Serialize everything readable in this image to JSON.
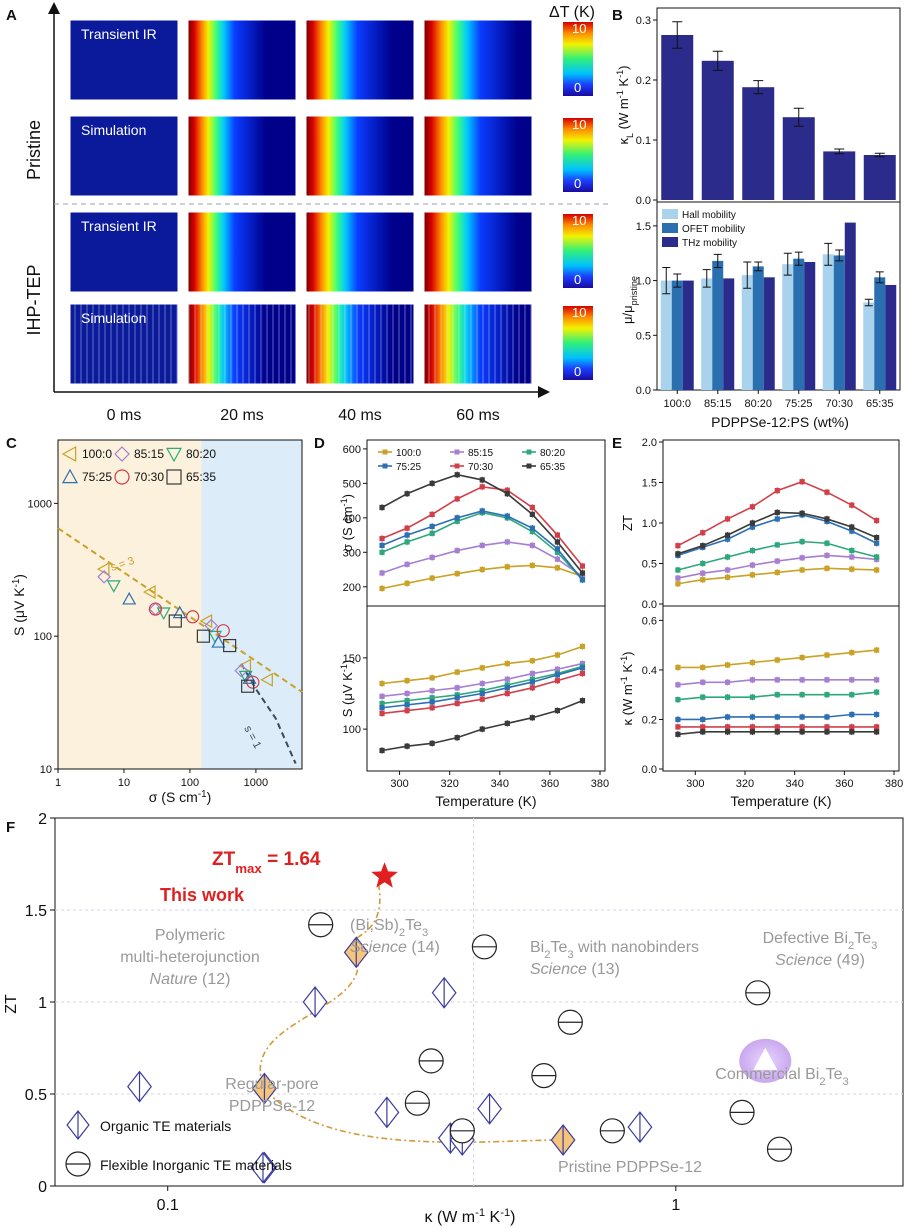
{
  "panels": {
    "A": {
      "letter": "A",
      "rows": [
        {
          "group": "Pristine",
          "label": "Transient IR",
          "mode": "ir"
        },
        {
          "group": "Pristine",
          "label": "Simulation",
          "mode": "sim"
        },
        {
          "group": "IHP-TEP",
          "label": "Transient IR",
          "mode": "ir"
        },
        {
          "group": "IHP-TEP",
          "label": "Simulation",
          "mode": "simstripe"
        }
      ],
      "groups": [
        "Pristine",
        "IHP-TEP"
      ],
      "times": [
        "0 ms",
        "20 ms",
        "40 ms",
        "60 ms"
      ],
      "colorbar_title": "ΔT (K)",
      "colorbar_max": "10",
      "colorbar_min": "0"
    },
    "B": {
      "letter": "B"
    },
    "C": {
      "letter": "C"
    },
    "D": {
      "letter": "D"
    },
    "E": {
      "letter": "E"
    },
    "F": {
      "letter": "F"
    }
  },
  "colors": {
    "100:0": "#c9a227",
    "85:15": "#a77fd0",
    "80:20": "#2ea87b",
    "75:25": "#2c6fb3",
    "70:30": "#d0404a",
    "65:35": "#3a3a3a",
    "bar_dark": "#2b2b8c",
    "hall": "#a9d3ec",
    "ofet": "#2a6fb0",
    "thz": "#2b2b8c",
    "star": "#e02020",
    "gray_text": "#999999"
  },
  "chart_data": [
    {
      "id": "B_top",
      "type": "bar",
      "categories": [
        "100:0",
        "85:15",
        "80:20",
        "75:25",
        "70:30",
        "65:35"
      ],
      "values": [
        0.275,
        0.232,
        0.188,
        0.138,
        0.081,
        0.075
      ],
      "errors": [
        0.022,
        0.016,
        0.011,
        0.015,
        0.004,
        0.003
      ],
      "ylabel": "κL (W m⁻¹ K⁻¹)",
      "ylim": [
        0,
        0.32
      ],
      "yticks": [
        "0.0",
        "0.1",
        "0.2",
        "0.3"
      ]
    },
    {
      "id": "B_bottom",
      "type": "bar",
      "categories": [
        "100:0",
        "85:15",
        "80:20",
        "75:25",
        "70:30",
        "65:35"
      ],
      "series": [
        {
          "name": "Hall mobility",
          "values": [
            1.0,
            1.02,
            1.05,
            1.15,
            1.24,
            0.8
          ],
          "errors": [
            0.12,
            0.08,
            0.12,
            0.1,
            0.1,
            0.03
          ]
        },
        {
          "name": "OFET mobility",
          "values": [
            1.0,
            1.18,
            1.13,
            1.2,
            1.23,
            1.03
          ],
          "errors": [
            0.06,
            0.06,
            0.04,
            0.06,
            0.05,
            0.05
          ]
        },
        {
          "name": "THz mobility",
          "values": [
            1.0,
            1.02,
            1.03,
            1.17,
            1.53,
            0.96
          ],
          "errors": [
            0,
            0,
            0,
            0,
            0,
            0
          ]
        }
      ],
      "ylabel": "μ/μpristine",
      "ylim": [
        0,
        1.7
      ],
      "yticks": [
        "0.0",
        "0.5",
        "1.0",
        "1.5"
      ],
      "xlabel": "PDPPSe-12:PS (wt%)"
    },
    {
      "id": "C",
      "type": "scatter",
      "xlabel": "σ (S cm⁻¹)",
      "ylabel": "S (μV K⁻¹)",
      "xscale": "log",
      "yscale": "log",
      "xlim": [
        1,
        5000
      ],
      "ylim": [
        10,
        3000
      ],
      "xticks": [
        "1",
        "10",
        "100",
        "1000"
      ],
      "yticks": [
        "10",
        "100",
        "1000"
      ],
      "regions": [
        {
          "x_from": 1,
          "x_to": 150,
          "color": "#fbf1dc"
        },
        {
          "x_from": 150,
          "x_to": 5000,
          "color": "#dcecf8"
        }
      ],
      "guide_lines": [
        {
          "label": "s = 3",
          "color": "#c9a227",
          "points": [
            [
              1,
              650
            ],
            [
              5000,
              38
            ]
          ]
        },
        {
          "label": "s = 1",
          "color": "#3a4a5a",
          "points": [
            [
              600,
              62
            ],
            [
              1000,
              40
            ],
            [
              2000,
              24
            ],
            [
              4000,
              11
            ]
          ]
        }
      ],
      "series": [
        {
          "name": "100:0",
          "marker": "tri-left",
          "points": [
            [
              5,
              320
            ],
            [
              25,
              215
            ],
            [
              180,
              130
            ],
            [
              700,
              60
            ],
            [
              1500,
              47
            ]
          ]
        },
        {
          "name": "85:15",
          "marker": "diamond",
          "points": [
            [
              5,
              280
            ],
            [
              30,
              160
            ],
            [
              210,
              120
            ],
            [
              600,
              55
            ]
          ]
        },
        {
          "name": "80:20",
          "marker": "tri-down",
          "points": [
            [
              7,
              240
            ],
            [
              40,
              150
            ],
            [
              240,
              100
            ],
            [
              700,
              50
            ]
          ]
        },
        {
          "name": "75:25",
          "marker": "tri-up",
          "points": [
            [
              12,
              190
            ],
            [
              70,
              150
            ],
            [
              270,
              90
            ],
            [
              800,
              48
            ]
          ]
        },
        {
          "name": "70:30",
          "marker": "circle",
          "points": [
            [
              30,
              160
            ],
            [
              110,
              140
            ],
            [
              320,
              110
            ],
            [
              900,
              45
            ]
          ]
        },
        {
          "name": "65:35",
          "marker": "square",
          "points": [
            [
              60,
              130
            ],
            [
              160,
              100
            ],
            [
              400,
              85
            ],
            [
              750,
              42
            ]
          ]
        }
      ]
    },
    {
      "id": "D_top",
      "type": "line",
      "x": [
        293,
        303,
        313,
        323,
        333,
        343,
        353,
        363,
        373
      ],
      "ylabel": "σ (S cm⁻¹)",
      "ylim": [
        150,
        620
      ],
      "yticks": [
        "200",
        "300",
        "400",
        "500",
        "600"
      ],
      "series": [
        {
          "name": "100:0",
          "values": [
            195,
            210,
            225,
            238,
            250,
            258,
            262,
            255,
            230
          ]
        },
        {
          "name": "85:15",
          "values": [
            240,
            265,
            285,
            305,
            320,
            330,
            320,
            280,
            230
          ]
        },
        {
          "name": "80:20",
          "values": [
            300,
            330,
            355,
            390,
            415,
            400,
            360,
            300,
            220
          ]
        },
        {
          "name": "75:25",
          "values": [
            320,
            350,
            375,
            400,
            420,
            405,
            370,
            310,
            220
          ]
        },
        {
          "name": "70:30",
          "values": [
            340,
            370,
            410,
            455,
            490,
            480,
            430,
            350,
            260
          ]
        },
        {
          "name": "65:35",
          "values": [
            430,
            470,
            500,
            525,
            510,
            470,
            410,
            330,
            240
          ]
        }
      ]
    },
    {
      "id": "D_bottom",
      "type": "line",
      "x": [
        293,
        303,
        313,
        323,
        333,
        343,
        353,
        363,
        373
      ],
      "xlabel": "Temperature (K)",
      "xticks": [
        "300",
        "320",
        "340",
        "360",
        "380"
      ],
      "xlim": [
        287,
        382
      ],
      "ylabel": "S (μV K⁻¹)",
      "ylim": [
        72,
        185
      ],
      "yticks": [
        "100",
        "150"
      ],
      "series": [
        {
          "name": "100:0",
          "values": [
            132,
            134,
            136,
            140,
            143,
            146,
            148,
            152,
            158
          ]
        },
        {
          "name": "85:15",
          "values": [
            123,
            125,
            127,
            129,
            132,
            135,
            139,
            142,
            146
          ]
        },
        {
          "name": "80:20",
          "values": [
            118,
            120,
            122,
            124,
            127,
            131,
            135,
            139,
            144
          ]
        },
        {
          "name": "75:25",
          "values": [
            115,
            117,
            119,
            122,
            125,
            129,
            133,
            138,
            143
          ]
        },
        {
          "name": "70:30",
          "values": [
            111,
            113,
            115,
            118,
            121,
            125,
            129,
            134,
            139
          ]
        },
        {
          "name": "65:35",
          "values": [
            85,
            88,
            90,
            94,
            100,
            104,
            108,
            113,
            120
          ]
        }
      ]
    },
    {
      "id": "E_top",
      "type": "line",
      "x": [
        293,
        303,
        313,
        323,
        333,
        343,
        353,
        363,
        373
      ],
      "ylabel": "ZT",
      "ylim": [
        0,
        2.0
      ],
      "yticks": [
        "0.0",
        "0.5",
        "1.0",
        "1.5",
        "2.0"
      ],
      "series": [
        {
          "name": "100:0",
          "values": [
            0.25,
            0.3,
            0.33,
            0.36,
            0.39,
            0.42,
            0.44,
            0.43,
            0.42
          ]
        },
        {
          "name": "85:15",
          "values": [
            0.32,
            0.38,
            0.42,
            0.48,
            0.53,
            0.57,
            0.6,
            0.58,
            0.55
          ]
        },
        {
          "name": "80:20",
          "values": [
            0.42,
            0.5,
            0.58,
            0.66,
            0.73,
            0.77,
            0.75,
            0.66,
            0.58
          ]
        },
        {
          "name": "75:25",
          "values": [
            0.6,
            0.7,
            0.8,
            0.95,
            1.05,
            1.1,
            1.02,
            0.9,
            0.75
          ]
        },
        {
          "name": "70:30",
          "values": [
            0.72,
            0.88,
            1.05,
            1.2,
            1.4,
            1.51,
            1.38,
            1.22,
            1.03
          ]
        },
        {
          "name": "65:35",
          "values": [
            0.62,
            0.72,
            0.85,
            1.0,
            1.13,
            1.12,
            1.05,
            0.95,
            0.82
          ]
        }
      ]
    },
    {
      "id": "E_bottom",
      "type": "line",
      "x": [
        293,
        303,
        313,
        323,
        333,
        343,
        353,
        363,
        373
      ],
      "xlabel": "Temperature (K)",
      "xticks": [
        "300",
        "320",
        "340",
        "360",
        "380"
      ],
      "xlim": [
        287,
        382
      ],
      "ylabel": "κ (W m⁻¹ K⁻¹)",
      "ylim": [
        0,
        0.65
      ],
      "yticks": [
        "0.0",
        "0.2",
        "0.4",
        "0.6"
      ],
      "series": [
        {
          "name": "100:0",
          "values": [
            0.41,
            0.41,
            0.42,
            0.43,
            0.44,
            0.45,
            0.46,
            0.47,
            0.48
          ]
        },
        {
          "name": "85:15",
          "values": [
            0.34,
            0.35,
            0.35,
            0.36,
            0.36,
            0.36,
            0.36,
            0.36,
            0.36
          ]
        },
        {
          "name": "80:20",
          "values": [
            0.28,
            0.29,
            0.29,
            0.29,
            0.3,
            0.3,
            0.3,
            0.3,
            0.31
          ]
        },
        {
          "name": "75:25",
          "values": [
            0.2,
            0.2,
            0.21,
            0.21,
            0.21,
            0.21,
            0.21,
            0.22,
            0.22
          ]
        },
        {
          "name": "70:30",
          "values": [
            0.17,
            0.17,
            0.17,
            0.17,
            0.17,
            0.17,
            0.17,
            0.17,
            0.17
          ]
        },
        {
          "name": "65:35",
          "values": [
            0.14,
            0.15,
            0.15,
            0.15,
            0.15,
            0.15,
            0.15,
            0.15,
            0.15
          ]
        }
      ]
    },
    {
      "id": "F",
      "type": "scatter",
      "xlabel": "κ (W m⁻¹ K⁻¹)",
      "ylabel": "ZT",
      "xscale": "log",
      "xlim": [
        0.06,
        2.8
      ],
      "ylim": [
        0,
        2
      ],
      "xticks": [
        "0.1",
        "1"
      ],
      "yticks": [
        "0",
        "0.5",
        "1",
        "1.5",
        "2"
      ],
      "highlight": {
        "label": "ZT",
        "sub": "max",
        "value_text": " = 1.64",
        "work_label": "This work",
        "point": [
          0.26,
          1.64
        ]
      },
      "organic": [
        [
          0.088,
          0.54
        ],
        [
          0.155,
          0.1
        ],
        [
          0.195,
          1.0
        ],
        [
          0.27,
          0.4
        ],
        [
          0.35,
          1.05
        ],
        [
          0.36,
          0.26
        ],
        [
          0.38,
          0.25
        ],
        [
          0.43,
          0.42
        ],
        [
          0.85,
          0.32
        ],
        [
          0.154,
          0.1
        ]
      ],
      "inorganic": [
        [
          0.2,
          1.42
        ],
        [
          0.31,
          0.45
        ],
        [
          0.33,
          0.68
        ],
        [
          0.38,
          0.3
        ],
        [
          0.42,
          1.3
        ],
        [
          0.55,
          0.6
        ],
        [
          0.62,
          0.89
        ],
        [
          0.75,
          0.3
        ],
        [
          1.35,
          0.4
        ],
        [
          1.45,
          1.05
        ],
        [
          1.6,
          0.2
        ]
      ],
      "this_work_curve": [
        [
          0.26,
          1.64
        ],
        [
          0.235,
          1.27
        ],
        [
          0.155,
          0.53
        ],
        [
          0.6,
          0.25
        ]
      ],
      "annotations": [
        {
          "lines": [
            "Polymeric",
            "multi-heterojunction",
            "Nature (12)"
          ]
        },
        {
          "lines": [
            "(Bi,Sb)2Te3",
            "Science (14)"
          ]
        },
        {
          "lines": [
            "Bi2Te3 with nanobinders",
            "Science (13)"
          ]
        },
        {
          "lines": [
            "Defective Bi2Te3",
            "Science (49)"
          ]
        },
        {
          "lines": [
            "Commercial Bi2Te3"
          ]
        },
        {
          "lines": [
            "Regular-pore",
            "PDPPSe-12"
          ]
        },
        {
          "lines": [
            "Pristine PDPPSe-12"
          ]
        }
      ],
      "legend": [
        "Organic TE materials",
        "Flexible Inorganic TE materials"
      ]
    }
  ]
}
